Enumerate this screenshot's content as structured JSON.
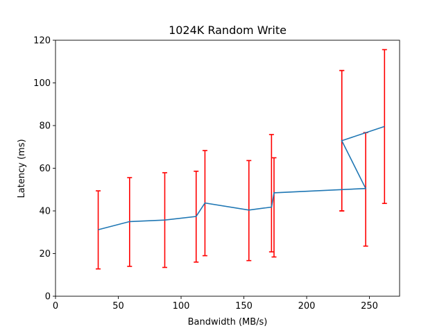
{
  "chart_data": {
    "type": "line",
    "title": "1024K  Random Write",
    "xlabel": "Bandwidth (MB/s)",
    "ylabel": "Latency (ms)",
    "xlim": [
      0,
      274
    ],
    "ylim": [
      0,
      120
    ],
    "xticks": [
      0,
      50,
      100,
      150,
      200,
      250
    ],
    "yticks": [
      0,
      20,
      40,
      60,
      80,
      100,
      120
    ],
    "grid": false,
    "line_color": "#1f77b4",
    "errorbar_color": "#ff0000",
    "points": [
      {
        "x": 34,
        "y": 31.2,
        "lo": 12.8,
        "hi": 49.4
      },
      {
        "x": 59,
        "y": 35.0,
        "lo": 14.0,
        "hi": 55.6
      },
      {
        "x": 87,
        "y": 35.7,
        "lo": 13.5,
        "hi": 57.9
      },
      {
        "x": 112,
        "y": 37.4,
        "lo": 16.0,
        "hi": 58.6
      },
      {
        "x": 119,
        "y": 43.7,
        "lo": 19.0,
        "hi": 68.3
      },
      {
        "x": 154,
        "y": 40.4,
        "lo": 16.7,
        "hi": 63.6
      },
      {
        "x": 172,
        "y": 41.8,
        "lo": 20.8,
        "hi": 75.8
      },
      {
        "x": 174,
        "y": 48.5,
        "lo": 18.4,
        "hi": 64.9
      },
      {
        "x": 228,
        "y": 50.0,
        "lo": 40.0,
        "hi": 105.8
      },
      {
        "x": 247,
        "y": 50.5,
        "lo": 23.5,
        "hi": 76.7
      },
      {
        "x": 228,
        "y": 72.9,
        "lo": 40.0,
        "hi": 105.8
      },
      {
        "x": 262,
        "y": 79.6,
        "lo": 43.5,
        "hi": 115.6
      }
    ]
  }
}
